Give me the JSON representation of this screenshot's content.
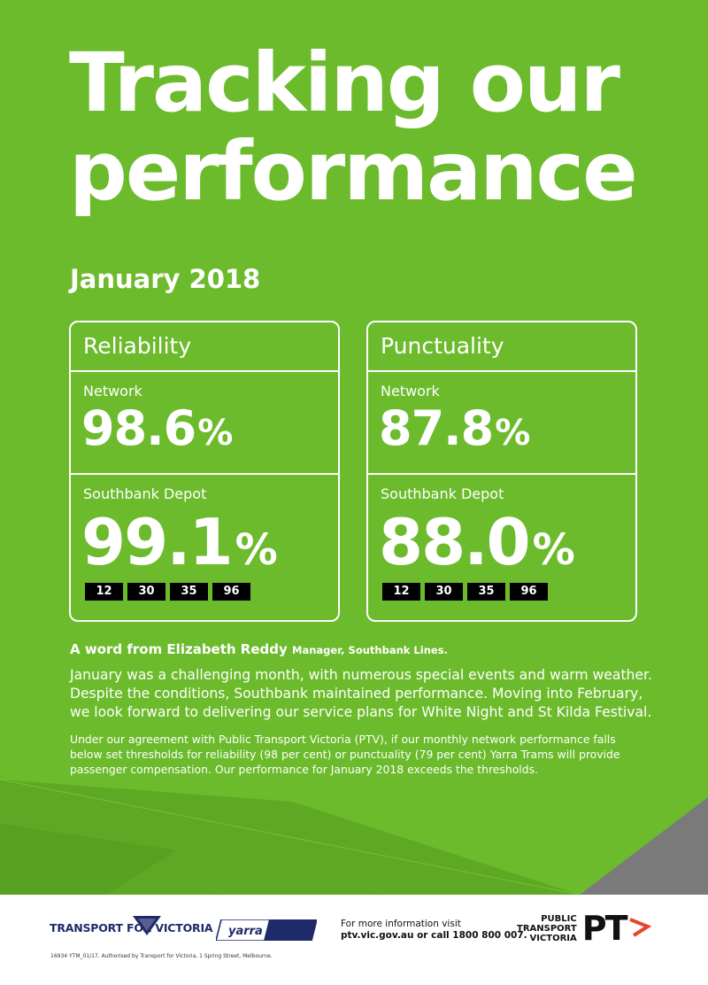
{
  "colors": {
    "brand_green": "#6cbb2c",
    "tfv_navy": "#1f2a6b",
    "ptv_orange": "#e8462a",
    "route_badge": "#000000"
  },
  "title": {
    "line1": "Tracking our",
    "line2": "performance"
  },
  "period": "January 2018",
  "reliability": {
    "heading": "Reliability",
    "network_label": "Network",
    "network_value": "98.6",
    "depot_label": "Southbank Depot",
    "depot_value": "99.1",
    "percent_sign": "%",
    "routes": [
      "12",
      "30",
      "35",
      "96"
    ]
  },
  "punctuality": {
    "heading": "Punctuality",
    "network_label": "Network",
    "network_value": "87.8",
    "depot_label": "Southbank Depot",
    "depot_value": "88.0",
    "percent_sign": "%",
    "routes": [
      "12",
      "30",
      "35",
      "96"
    ]
  },
  "word": {
    "heading": "A word from Elizabeth Reddy",
    "role": "Manager, Southbank Lines.",
    "body": [
      "January was a challenging month, with numerous special events and warm weather.",
      "Despite the conditions, Southbank maintained performance. Moving into February,",
      "we look forward to delivering our service plans for White Night and St Kilda Festival."
    ]
  },
  "compensation": [
    "Under our agreement with Public Transport Victoria (PTV), if our monthly network performance falls",
    "below set thresholds for reliability (98 per cent) or punctuality (79 per cent) Yarra Trams will provide",
    "passenger compensation. Our performance for January 2018 exceeds the thresholds."
  ],
  "footer": {
    "tfv_logo": "TRANSPORT FOR VICTORIA",
    "yarra_logo": "yarra trams",
    "info_line1": "For more information visit",
    "info_line2": "ptv.vic.gov.au or call 1800 800 007.",
    "ptv_line1": "PUBLIC",
    "ptv_line2": "TRANSPORT",
    "ptv_line3": "VICTORIA",
    "ptv_mark": "PT",
    "authorisation": "16934 YTM_01/17. Authorised by Transport for Victoria, 1 Spring Street, Melbourne."
  }
}
